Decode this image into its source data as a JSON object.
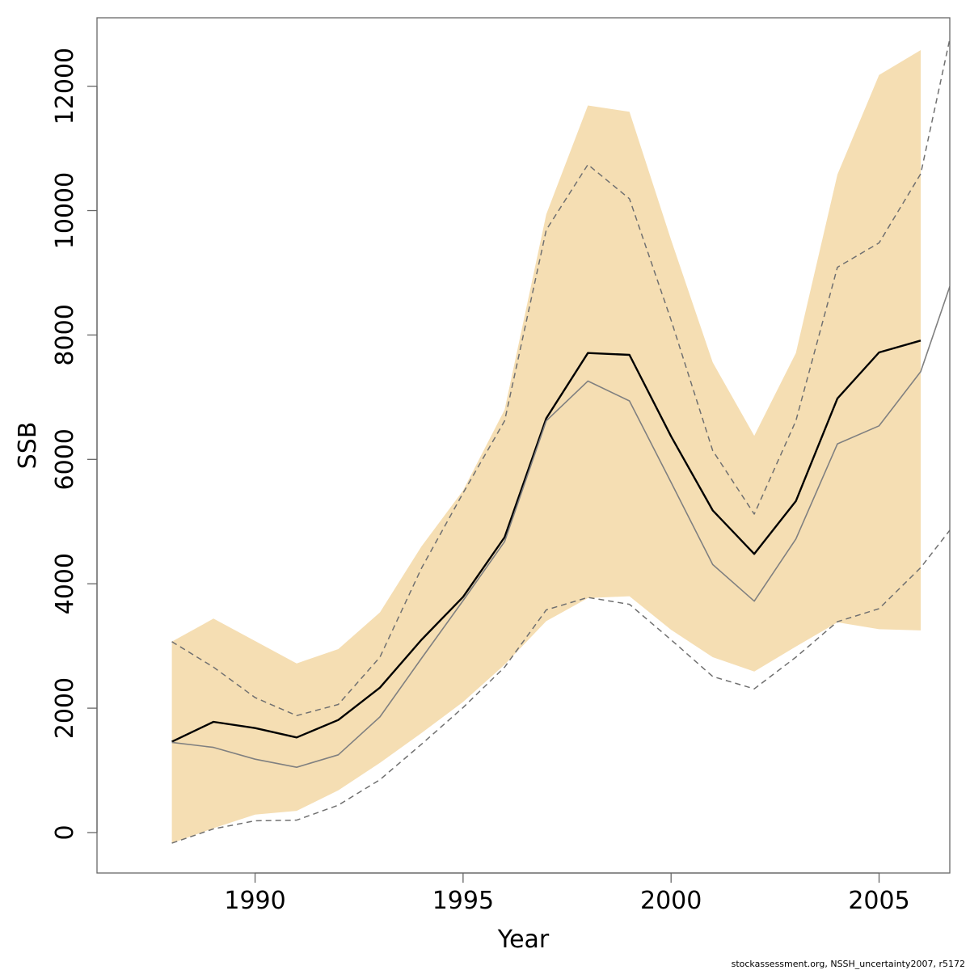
{
  "chart_data": {
    "type": "line",
    "xlabel": "Year",
    "ylabel": "SSB",
    "xlim": [
      1986.2,
      2006.7
    ],
    "ylim": [
      -650,
      13100
    ],
    "xticks": [
      1990,
      1995,
      2000,
      2005
    ],
    "yticks": [
      0,
      2000,
      4000,
      6000,
      8000,
      10000,
      12000
    ],
    "grid": false,
    "legend": "none",
    "colors": {
      "band": "#f5deb3",
      "main_line": "#000000",
      "secondary_line": "#808080",
      "dashed_lines": "#707070"
    },
    "x": [
      1988,
      1989,
      1990,
      1991,
      1992,
      1993,
      1994,
      1995,
      1996,
      1997,
      1998,
      1999,
      2000,
      2001,
      2002,
      2003,
      2004,
      2005,
      2006
    ],
    "band": {
      "upper": [
        3070,
        3440,
        3080,
        2720,
        2950,
        3540,
        4600,
        5500,
        6800,
        9940,
        11690,
        11590,
        9530,
        7560,
        6380,
        7710,
        10580,
        12180,
        12580
      ],
      "lower": [
        -170,
        70,
        290,
        350,
        680,
        1120,
        1600,
        2100,
        2700,
        3400,
        3770,
        3800,
        3260,
        2820,
        2590,
        2990,
        3380,
        3270,
        3250
      ]
    },
    "series": [
      {
        "role": "main",
        "values": [
          1460,
          1780,
          1680,
          1530,
          1810,
          2330,
          3100,
          3790,
          4750,
          6660,
          7710,
          7680,
          6370,
          5180,
          4480,
          5330,
          6980,
          7720,
          7910
        ]
      },
      {
        "role": "secondary",
        "x_extra": 2006.7,
        "values": [
          1450,
          1370,
          1180,
          1050,
          1250,
          1860,
          2800,
          3730,
          4680,
          6620,
          7260,
          6940,
          5630,
          4310,
          3720,
          4720,
          6250,
          6540,
          7410
        ],
        "extra_value": 8780
      },
      {
        "role": "dashed-upper",
        "x_extra": 2006.7,
        "values": [
          3070,
          2660,
          2170,
          1880,
          2060,
          2820,
          4250,
          5460,
          6620,
          9690,
          10740,
          10190,
          8240,
          6140,
          5120,
          6620,
          9090,
          9480,
          10590
        ],
        "extra_value": 12760
      },
      {
        "role": "dashed-lower",
        "x_extra": 2006.7,
        "values": [
          -170,
          60,
          190,
          200,
          440,
          850,
          1420,
          2010,
          2660,
          3580,
          3780,
          3670,
          3100,
          2510,
          2310,
          2820,
          3390,
          3600,
          4260
        ],
        "extra_value": 4860
      }
    ]
  },
  "footer": "stockassessment.org, NSSH_uncertainty2007, r5172"
}
